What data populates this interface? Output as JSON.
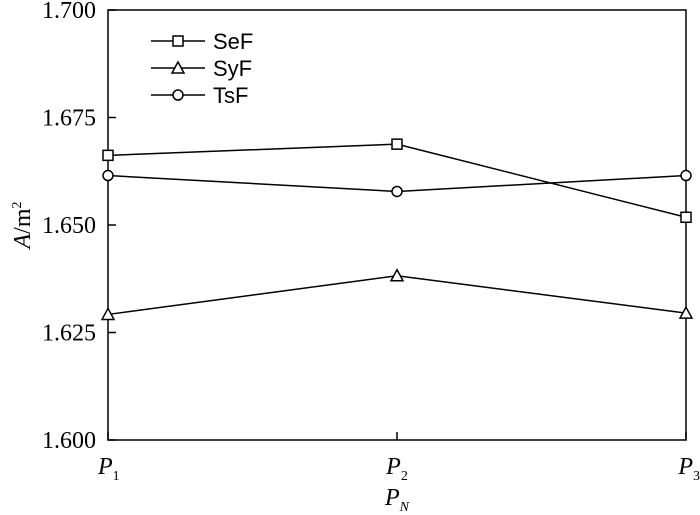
{
  "chart_data": {
    "type": "line",
    "categories": [
      "P1",
      "P2",
      "P3"
    ],
    "category_labels": [
      {
        "base": "P",
        "sub": "1"
      },
      {
        "base": "P",
        "sub": "2"
      },
      {
        "base": "P",
        "sub": "3"
      }
    ],
    "series": [
      {
        "name": "SeF",
        "marker": "square",
        "values": [
          1.6662,
          1.6688,
          1.6518
        ]
      },
      {
        "name": "SyF",
        "marker": "triangle",
        "values": [
          1.6292,
          1.6382,
          1.6295
        ]
      },
      {
        "name": "TsF",
        "marker": "circle",
        "values": [
          1.6615,
          1.6578,
          1.6615
        ]
      }
    ],
    "ylim": [
      1.6,
      1.7
    ],
    "yticks": [
      "1.600",
      "1.625",
      "1.650",
      "1.675",
      "1.700"
    ],
    "xlabel": {
      "base": "P",
      "sub": "N"
    },
    "ylabel": {
      "base": "A",
      "unit": "/m",
      "sup": "2"
    },
    "legend_position": "top-left",
    "grid": false,
    "line_color": "#000000"
  }
}
